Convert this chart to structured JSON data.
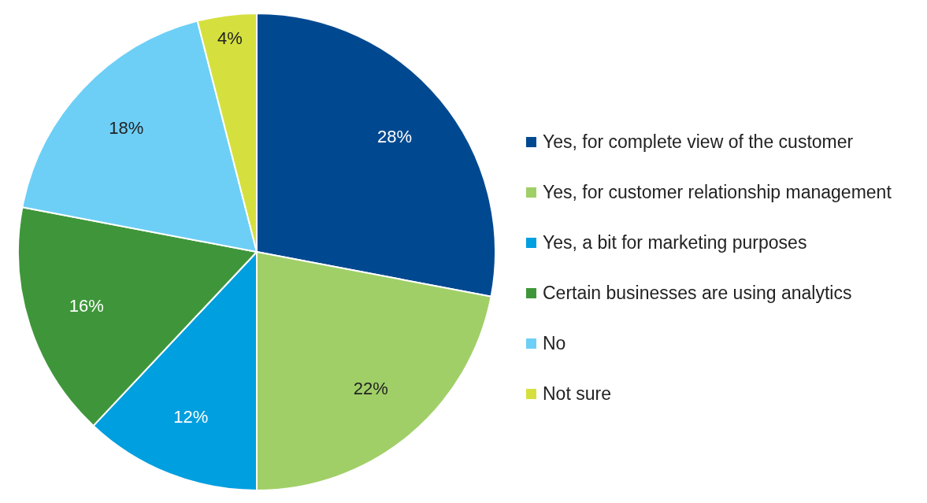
{
  "chart_data": {
    "type": "pie",
    "categories": [
      "Yes, for complete view of the customer",
      "Yes, for customer relationship management",
      "Yes, a bit for marketing purposes",
      "Certain businesses are using analytics",
      "No",
      "Not sure"
    ],
    "values": [
      28,
      22,
      12,
      16,
      18,
      4
    ],
    "colors": [
      "#004990",
      "#a0cf67",
      "#009fdf",
      "#3f963a",
      "#6dcff6",
      "#d5e03e"
    ],
    "value_labels": [
      "28%",
      "22%",
      "12%",
      "16%",
      "18%",
      "4%"
    ],
    "legend": "right"
  }
}
